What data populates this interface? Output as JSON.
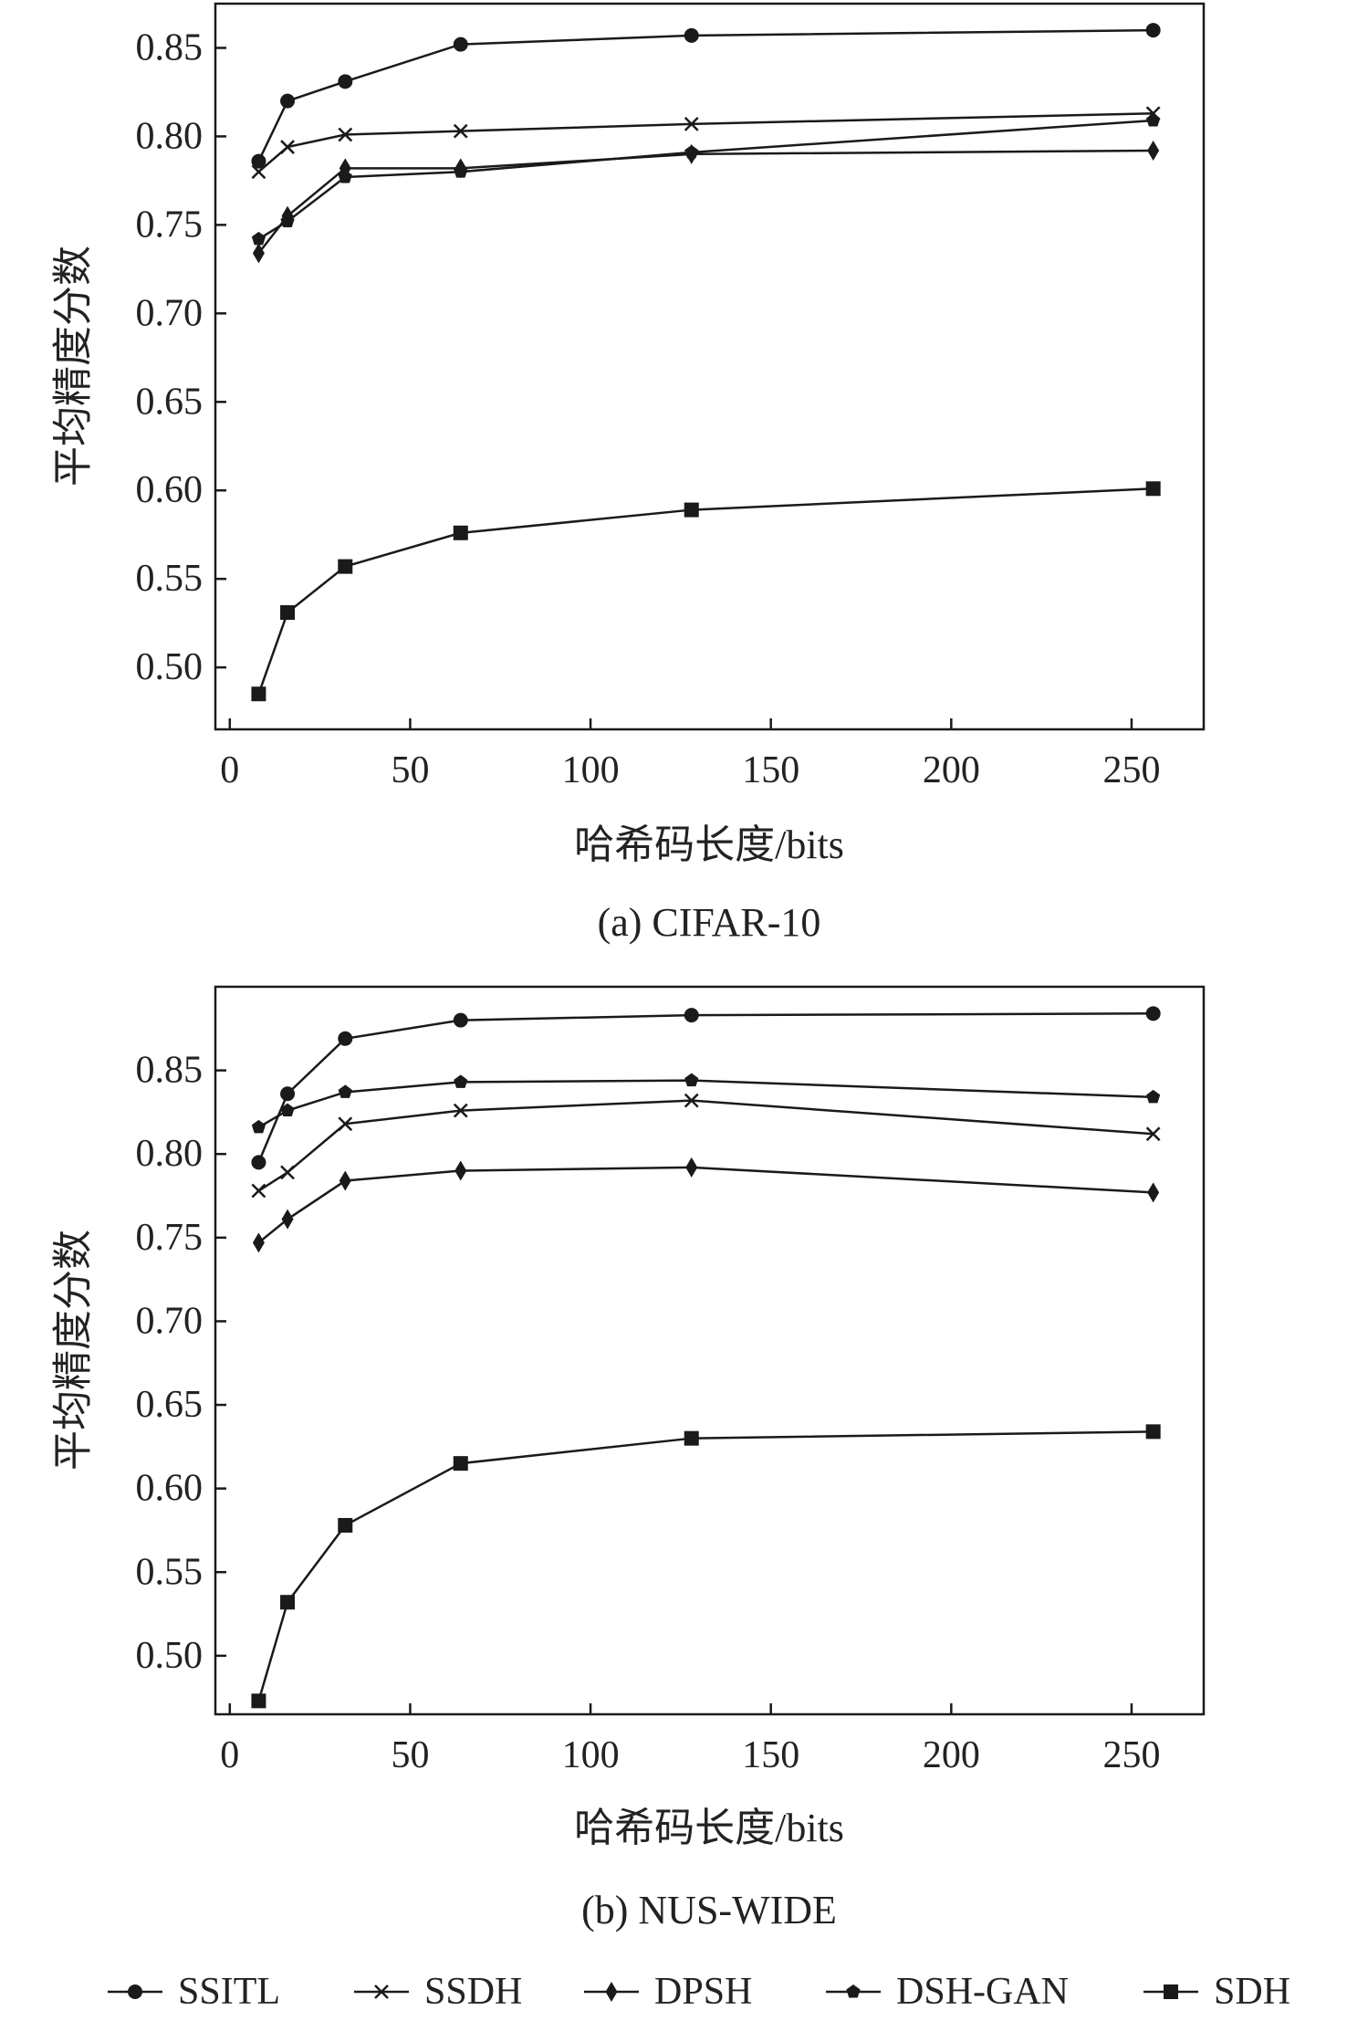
{
  "chart_data": [
    {
      "type": "line",
      "caption": "(a) CIFAR-10",
      "xlabel": "哈希码长度/bits",
      "ylabel": "平均精度分数",
      "xlim": [
        -4,
        270
      ],
      "ylim": [
        0.465,
        0.875
      ],
      "xticks": [
        0,
        50,
        100,
        150,
        200,
        250
      ],
      "xtick_labels": [
        "0",
        "50",
        "100",
        "150",
        "200",
        "250"
      ],
      "yticks": [
        0.5,
        0.55,
        0.6,
        0.65,
        0.7,
        0.75,
        0.8,
        0.85
      ],
      "ytick_labels": [
        "0.50",
        "0.55",
        "0.60",
        "0.65",
        "0.70",
        "0.75",
        "0.80",
        "0.85"
      ],
      "grid": false,
      "x": [
        8,
        16,
        32,
        64,
        128,
        256
      ],
      "series": [
        {
          "name": "SSITL",
          "marker": "circle",
          "values": [
            0.786,
            0.82,
            0.831,
            0.852,
            0.857,
            0.86
          ]
        },
        {
          "name": "SSDH",
          "marker": "x",
          "values": [
            0.78,
            0.794,
            0.801,
            0.803,
            0.807,
            0.813
          ]
        },
        {
          "name": "DPSH",
          "marker": "diamond",
          "values": [
            0.734,
            0.755,
            0.782,
            0.782,
            0.79,
            0.792
          ]
        },
        {
          "name": "DSH-GAN",
          "marker": "pentagon",
          "values": [
            0.742,
            0.752,
            0.777,
            0.78,
            0.791,
            0.809
          ]
        },
        {
          "name": "SDH",
          "marker": "square",
          "values": [
            0.485,
            0.531,
            0.557,
            0.576,
            0.589,
            0.601
          ]
        }
      ]
    },
    {
      "type": "line",
      "caption": "(b) NUS-WIDE",
      "xlabel": "哈希码长度/bits",
      "ylabel": "平均精度分数",
      "xlim": [
        -4,
        270
      ],
      "ylim": [
        0.465,
        0.9
      ],
      "xticks": [
        0,
        50,
        100,
        150,
        200,
        250
      ],
      "xtick_labels": [
        "0",
        "50",
        "100",
        "150",
        "200",
        "250"
      ],
      "yticks": [
        0.5,
        0.55,
        0.6,
        0.65,
        0.7,
        0.75,
        0.8,
        0.85
      ],
      "ytick_labels": [
        "0.50",
        "0.55",
        "0.60",
        "0.65",
        "0.70",
        "0.75",
        "0.80",
        "0.85"
      ],
      "grid": false,
      "x": [
        8,
        16,
        32,
        64,
        128,
        256
      ],
      "series": [
        {
          "name": "SSITL",
          "marker": "circle",
          "values": [
            0.795,
            0.836,
            0.869,
            0.88,
            0.883,
            0.884
          ]
        },
        {
          "name": "SSDH",
          "marker": "x",
          "values": [
            0.778,
            0.789,
            0.818,
            0.826,
            0.832,
            0.812
          ]
        },
        {
          "name": "DPSH",
          "marker": "diamond",
          "values": [
            0.747,
            0.761,
            0.784,
            0.79,
            0.792,
            0.777
          ]
        },
        {
          "name": "DSH-GAN",
          "marker": "pentagon",
          "values": [
            0.816,
            0.826,
            0.837,
            0.843,
            0.844,
            0.834
          ]
        },
        {
          "name": "SDH",
          "marker": "square",
          "values": [
            0.473,
            0.532,
            0.578,
            0.615,
            0.63,
            0.634
          ]
        }
      ]
    }
  ],
  "legend": {
    "placement": "bottom",
    "entries": [
      {
        "label": "SSITL",
        "marker": "circle"
      },
      {
        "label": "SSDH",
        "marker": "x"
      },
      {
        "label": "DPSH",
        "marker": "diamond"
      },
      {
        "label": "DSH-GAN",
        "marker": "pentagon"
      },
      {
        "label": "SDH",
        "marker": "square"
      }
    ]
  },
  "colors": {
    "line": "#1a1a1a",
    "axis": "#1a1a1a",
    "text": "#222222",
    "background": "#ffffff"
  }
}
